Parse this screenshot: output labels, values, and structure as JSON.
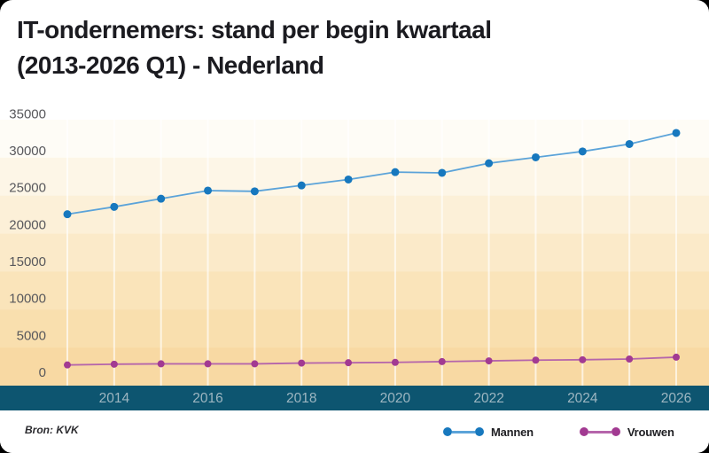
{
  "title": {
    "line1": "IT-ondernemers: stand per begin kwartaal",
    "line2": "(2013-2026 Q1) - Nederland"
  },
  "source": "Bron: KVK",
  "colors": {
    "page_background": "#000000",
    "card_background": "#ffffff",
    "title_text": "#1b1b20",
    "axis_band": "#0d5570",
    "axis_tick_text": "#9db6c1",
    "y_tick_text": "#58585c",
    "gridline": "rgba(255,255,255,0.65)",
    "bands": [
      "#fefcf6",
      "#fdf6e7",
      "#fcf0d8",
      "#fbeac9",
      "#fae4ba",
      "#f9dfae",
      "#f8d9a3"
    ]
  },
  "chart_data": {
    "type": "line",
    "title": "IT-ondernemers: stand per begin kwartaal (2013-2026 Q1) - Nederland",
    "x": [
      2013,
      2014,
      2015,
      2016,
      2017,
      2018,
      2019,
      2020,
      2021,
      2022,
      2023,
      2024,
      2025,
      2026
    ],
    "series": [
      {
        "name": "Mannen",
        "line_color": "#5ba3d9",
        "dot_color": "#1778be",
        "values": [
          21400,
          22400,
          23500,
          24600,
          24500,
          25300,
          26100,
          27100,
          27000,
          28300,
          29100,
          29900,
          30900,
          32400
        ]
      },
      {
        "name": "Vrouwen",
        "line_color": "#b565ab",
        "dot_color": "#a23a92",
        "values": [
          1000,
          1100,
          1150,
          1150,
          1150,
          1250,
          1300,
          1350,
          1450,
          1550,
          1650,
          1700,
          1800,
          2050
        ]
      }
    ],
    "ylim": [
      0,
      35000
    ],
    "y_ticks": [
      0,
      5000,
      10000,
      15000,
      20000,
      25000,
      30000,
      35000
    ],
    "x_tick_labels": [
      2014,
      2016,
      2018,
      2020,
      2022,
      2024,
      2026
    ],
    "grid": true,
    "legend_position": "bottom"
  }
}
